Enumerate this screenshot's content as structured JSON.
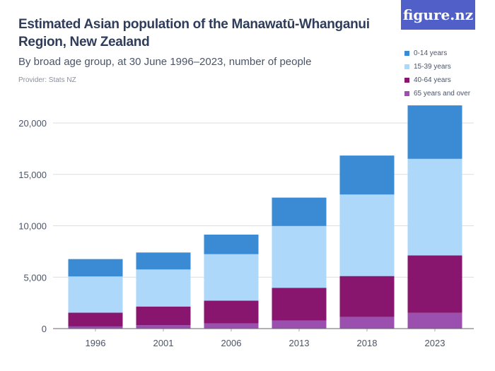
{
  "header": {
    "title": "Estimated Asian population of the Manawatū-Whanganui Region, New Zealand",
    "subtitle": "By broad age group, at 30 June 1996–2023, number of people",
    "provider": "Provider: Stats NZ",
    "logo_text": "figure.nz"
  },
  "chart_data": {
    "type": "bar",
    "stacked": true,
    "title": "Estimated Asian population of the Manawatū-Whanganui Region, New Zealand",
    "subtitle": "By broad age group, at 30 June 1996–2023, number of people",
    "xlabel": "",
    "ylabel": "",
    "categories": [
      "1996",
      "2001",
      "2006",
      "2013",
      "2018",
      "2023"
    ],
    "ylim": [
      0,
      20000
    ],
    "yticks": [
      0,
      5000,
      10000,
      15000,
      20000
    ],
    "ytick_labels": [
      "0",
      "5,000",
      "10,000",
      "15,000",
      "20,000"
    ],
    "grid": true,
    "legend": "top-right",
    "series": [
      {
        "name": "65 years and over",
        "color": "#9b4fae",
        "values": [
          210,
          340,
          500,
          780,
          1140,
          1530
        ]
      },
      {
        "name": "40-64 years",
        "color": "#88166e",
        "values": [
          1340,
          1810,
          2220,
          3190,
          3970,
          5590
        ]
      },
      {
        "name": "15-39 years",
        "color": "#aed8fa",
        "values": [
          3520,
          3600,
          4520,
          6010,
          7930,
          9390
        ]
      },
      {
        "name": "0-14 years",
        "color": "#3a8ad4",
        "values": [
          1690,
          1650,
          1900,
          2760,
          3790,
          5200
        ]
      }
    ]
  }
}
